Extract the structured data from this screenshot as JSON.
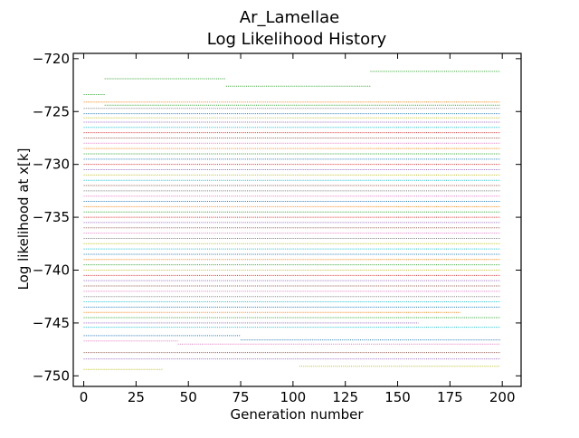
{
  "chart_data": {
    "type": "line",
    "title": "Ar_Lamellae",
    "subtitle": "Log Likelihood History",
    "xlabel": "Generation number",
    "ylabel": "Log likelihood at x[k]",
    "xlim": [
      -5,
      209
    ],
    "ylim": [
      -751,
      -719.5
    ],
    "x_ticks": [
      0,
      25,
      50,
      75,
      100,
      125,
      150,
      175,
      200
    ],
    "x_tick_labels": [
      "0",
      "25",
      "50",
      "75",
      "100",
      "125",
      "150",
      "175",
      "200"
    ],
    "y_ticks": [
      -720,
      -725,
      -730,
      -735,
      -740,
      -745,
      -750
    ],
    "y_tick_labels": [
      "−720",
      "−725",
      "−730",
      "−735",
      "−740",
      "−745",
      "−750"
    ],
    "grid": false,
    "legend": "none",
    "colors": [
      "#1f77b4",
      "#ff7f0e",
      "#2ca02c",
      "#d62728",
      "#9467bd",
      "#8c564b",
      "#e377c2",
      "#7f7f7f",
      "#bcbd22",
      "#17becf"
    ],
    "series": [
      {
        "color": "#2ca02c",
        "segments": [
          [
            10,
            68,
            -721.9
          ],
          [
            68,
            137,
            -722.6
          ],
          [
            137,
            199,
            -721.2
          ]
        ]
      },
      {
        "color": "#2ca02c",
        "segments": [
          [
            0,
            10,
            -723.4
          ],
          [
            10,
            199,
            -724.4
          ]
        ]
      },
      {
        "color": "#ff7f0e",
        "segments": [
          [
            0,
            199,
            -724.1
          ]
        ]
      },
      {
        "color": "#7f7f7f",
        "segments": [
          [
            0,
            199,
            -724.7
          ]
        ]
      },
      {
        "color": "#1f77b4",
        "segments": [
          [
            0,
            199,
            -725.2
          ]
        ]
      },
      {
        "color": "#bcbd22",
        "segments": [
          [
            0,
            199,
            -725.6
          ]
        ]
      },
      {
        "color": "#9467bd",
        "segments": [
          [
            0,
            199,
            -726.0
          ]
        ]
      },
      {
        "color": "#17becf",
        "segments": [
          [
            0,
            199,
            -726.5
          ]
        ]
      },
      {
        "color": "#d62728",
        "segments": [
          [
            0,
            199,
            -727.0
          ]
        ]
      },
      {
        "color": "#8c564b",
        "segments": [
          [
            0,
            199,
            -727.5
          ]
        ]
      },
      {
        "color": "#e377c2",
        "segments": [
          [
            0,
            199,
            -728.0
          ]
        ]
      },
      {
        "color": "#ff7f0e",
        "segments": [
          [
            0,
            199,
            -728.5
          ]
        ]
      },
      {
        "color": "#2ca02c",
        "segments": [
          [
            0,
            199,
            -729.0
          ]
        ]
      },
      {
        "color": "#1f77b4",
        "segments": [
          [
            0,
            199,
            -729.5
          ]
        ]
      },
      {
        "color": "#d62728",
        "segments": [
          [
            0,
            199,
            -730.0
          ]
        ]
      },
      {
        "color": "#9467bd",
        "segments": [
          [
            0,
            199,
            -730.5
          ]
        ]
      },
      {
        "color": "#bcbd22",
        "segments": [
          [
            0,
            199,
            -731.0
          ]
        ]
      },
      {
        "color": "#17becf",
        "segments": [
          [
            0,
            199,
            -731.5
          ]
        ]
      },
      {
        "color": "#8c564b",
        "segments": [
          [
            0,
            199,
            -732.0
          ]
        ]
      },
      {
        "color": "#7f7f7f",
        "segments": [
          [
            0,
            199,
            -732.5
          ]
        ]
      },
      {
        "color": "#e377c2",
        "segments": [
          [
            0,
            199,
            -733.0
          ]
        ]
      },
      {
        "color": "#1f77b4",
        "segments": [
          [
            0,
            199,
            -733.5
          ]
        ]
      },
      {
        "color": "#ff7f0e",
        "segments": [
          [
            0,
            199,
            -734.0
          ]
        ]
      },
      {
        "color": "#2ca02c",
        "segments": [
          [
            0,
            199,
            -734.5
          ]
        ]
      },
      {
        "color": "#d62728",
        "segments": [
          [
            0,
            199,
            -735.0
          ]
        ]
      },
      {
        "color": "#9467bd",
        "segments": [
          [
            0,
            199,
            -735.5
          ]
        ]
      },
      {
        "color": "#8c564b",
        "segments": [
          [
            0,
            199,
            -736.0
          ]
        ]
      },
      {
        "color": "#e377c2",
        "segments": [
          [
            0,
            199,
            -736.5
          ]
        ]
      },
      {
        "color": "#7f7f7f",
        "segments": [
          [
            0,
            199,
            -737.0
          ]
        ]
      },
      {
        "color": "#bcbd22",
        "segments": [
          [
            0,
            199,
            -737.5
          ]
        ]
      },
      {
        "color": "#17becf",
        "segments": [
          [
            0,
            199,
            -738.0
          ]
        ]
      },
      {
        "color": "#1f77b4",
        "segments": [
          [
            0,
            199,
            -738.5
          ]
        ]
      },
      {
        "color": "#ff7f0e",
        "segments": [
          [
            0,
            199,
            -739.0
          ]
        ]
      },
      {
        "color": "#2ca02c",
        "segments": [
          [
            0,
            199,
            -739.5
          ]
        ]
      },
      {
        "color": "#bcbd22",
        "segments": [
          [
            0,
            199,
            -740.0
          ]
        ]
      },
      {
        "color": "#d62728",
        "segments": [
          [
            0,
            199,
            -740.5
          ]
        ]
      },
      {
        "color": "#9467bd",
        "segments": [
          [
            0,
            199,
            -741.0
          ]
        ]
      },
      {
        "color": "#8c564b",
        "segments": [
          [
            0,
            199,
            -741.5
          ]
        ]
      },
      {
        "color": "#e377c2",
        "segments": [
          [
            0,
            199,
            -742.0
          ]
        ]
      },
      {
        "color": "#7f7f7f",
        "segments": [
          [
            0,
            199,
            -742.5
          ]
        ]
      },
      {
        "color": "#17becf",
        "segments": [
          [
            0,
            199,
            -743.0
          ]
        ]
      },
      {
        "color": "#1f77b4",
        "segments": [
          [
            0,
            199,
            -743.5
          ]
        ]
      },
      {
        "color": "#ff7f0e",
        "segments": [
          [
            0,
            180,
            -744.0
          ]
        ]
      },
      {
        "color": "#2ca02c",
        "segments": [
          [
            0,
            199,
            -744.5
          ]
        ]
      },
      {
        "color": "#9467bd",
        "segments": [
          [
            0,
            160,
            -745.0
          ]
        ]
      },
      {
        "color": "#17becf",
        "segments": [
          [
            0,
            199,
            -745.4
          ]
        ]
      },
      {
        "color": "#1f77b4",
        "segments": [
          [
            0,
            75,
            -746.2
          ],
          [
            75,
            199,
            -746.6
          ]
        ]
      },
      {
        "color": "#e377c2",
        "segments": [
          [
            0,
            45,
            -746.7
          ],
          [
            45,
            199,
            -747.0
          ]
        ]
      },
      {
        "color": "#8c564b",
        "segments": [
          [
            0,
            199,
            -747.8
          ]
        ]
      },
      {
        "color": "#9467bd",
        "segments": [
          [
            0,
            199,
            -748.4
          ]
        ]
      },
      {
        "color": "#bcbd22",
        "segments": [
          [
            0,
            38,
            -749.4
          ],
          [
            103,
            199,
            -749.1
          ]
        ]
      }
    ]
  }
}
